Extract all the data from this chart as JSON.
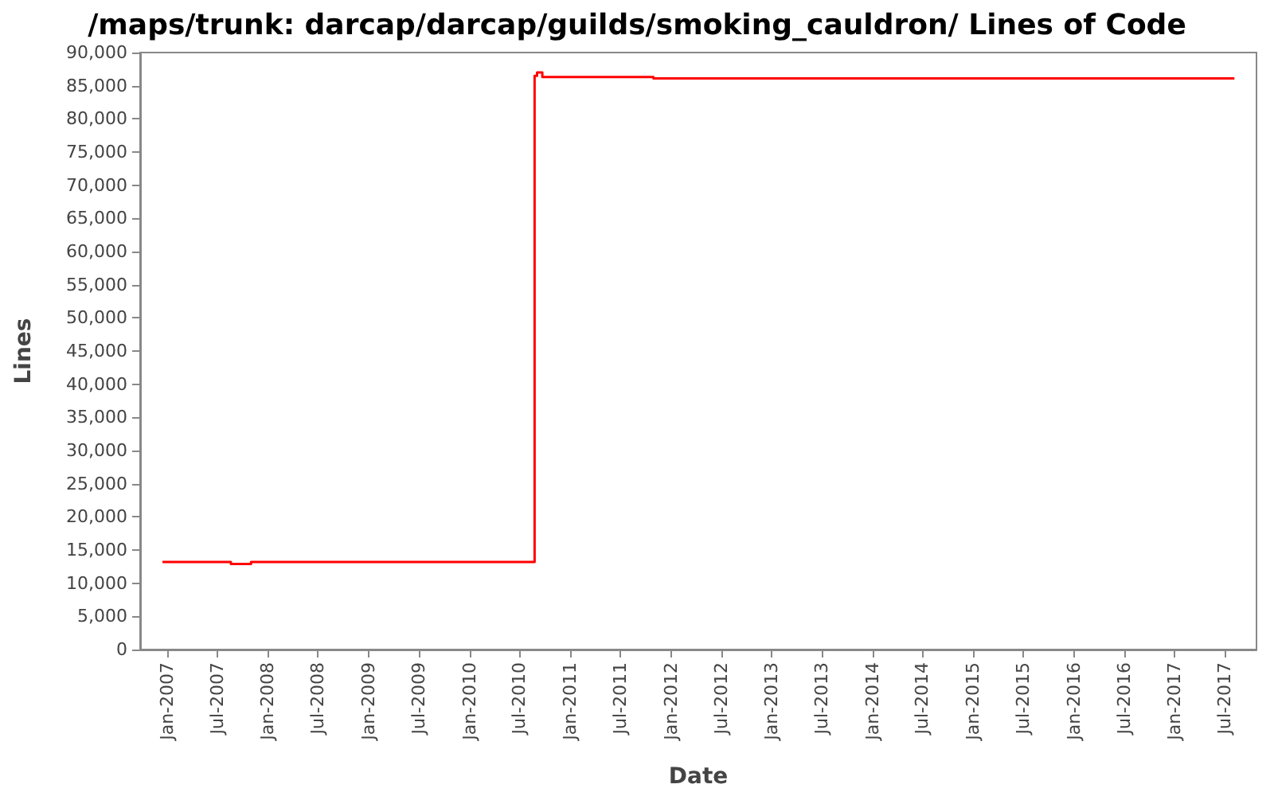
{
  "chart_data": {
    "type": "step",
    "title": "/maps/trunk: darcap/darcap/guilds/smoking_cauldron/ Lines of Code",
    "xlabel": "Date",
    "ylabel": "Lines",
    "series": [
      {
        "color": "#ff0000",
        "x": [
          "2006-12-15",
          "2007-08-20",
          "2007-11-01",
          "2010-08-25",
          "2010-09-03",
          "2010-09-22",
          "2011-10-30",
          "2017-08-05"
        ],
        "values": [
          13200,
          12900,
          13200,
          86500,
          87000,
          86300,
          86100,
          86100
        ]
      }
    ],
    "xlim": [
      "2006-09-25",
      "2017-10-24"
    ],
    "xticks": [
      {
        "value": "2007-01",
        "label": "Jan-2007"
      },
      {
        "value": "2007-07",
        "label": "Jul-2007"
      },
      {
        "value": "2008-01",
        "label": "Jan-2008"
      },
      {
        "value": "2008-07",
        "label": "Jul-2008"
      },
      {
        "value": "2009-01",
        "label": "Jan-2009"
      },
      {
        "value": "2009-07",
        "label": "Jul-2009"
      },
      {
        "value": "2010-01",
        "label": "Jan-2010"
      },
      {
        "value": "2010-07",
        "label": "Jul-2010"
      },
      {
        "value": "2011-01",
        "label": "Jan-2011"
      },
      {
        "value": "2011-07",
        "label": "Jul-2011"
      },
      {
        "value": "2012-01",
        "label": "Jan-2012"
      },
      {
        "value": "2012-07",
        "label": "Jul-2012"
      },
      {
        "value": "2013-01",
        "label": "Jan-2013"
      },
      {
        "value": "2013-07",
        "label": "Jul-2013"
      },
      {
        "value": "2014-01",
        "label": "Jan-2014"
      },
      {
        "value": "2014-07",
        "label": "Jul-2014"
      },
      {
        "value": "2015-01",
        "label": "Jan-2015"
      },
      {
        "value": "2015-07",
        "label": "Jul-2015"
      },
      {
        "value": "2016-01",
        "label": "Jan-2016"
      },
      {
        "value": "2016-07",
        "label": "Jul-2016"
      },
      {
        "value": "2017-01",
        "label": "Jan-2017"
      },
      {
        "value": "2017-07",
        "label": "Jul-2017"
      }
    ],
    "ylim": [
      0,
      90000
    ],
    "yticks": [
      {
        "value": 0,
        "label": "0"
      },
      {
        "value": 5000,
        "label": "5,000"
      },
      {
        "value": 10000,
        "label": "10,000"
      },
      {
        "value": 15000,
        "label": "15,000"
      },
      {
        "value": 20000,
        "label": "20,000"
      },
      {
        "value": 25000,
        "label": "25,000"
      },
      {
        "value": 30000,
        "label": "30,000"
      },
      {
        "value": 35000,
        "label": "35,000"
      },
      {
        "value": 40000,
        "label": "40,000"
      },
      {
        "value": 45000,
        "label": "45,000"
      },
      {
        "value": 50000,
        "label": "50,000"
      },
      {
        "value": 55000,
        "label": "55,000"
      },
      {
        "value": 60000,
        "label": "60,000"
      },
      {
        "value": 65000,
        "label": "65,000"
      },
      {
        "value": 70000,
        "label": "70,000"
      },
      {
        "value": 75000,
        "label": "75,000"
      },
      {
        "value": 80000,
        "label": "80,000"
      },
      {
        "value": 85000,
        "label": "85,000"
      },
      {
        "value": 90000,
        "label": "90,000"
      }
    ],
    "grid": false,
    "marker": "none"
  }
}
